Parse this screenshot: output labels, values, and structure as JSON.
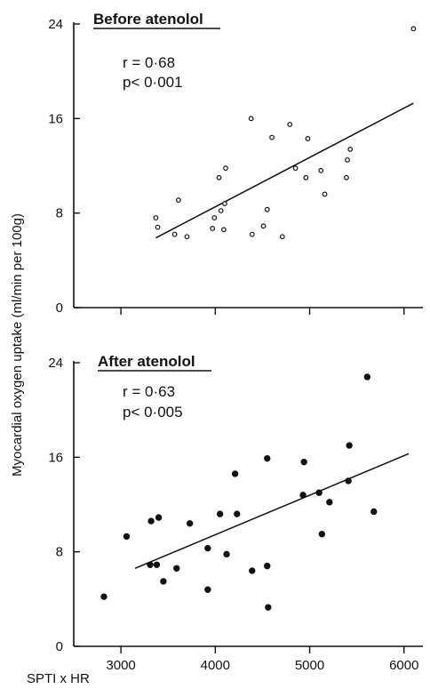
{
  "chart_data": [
    {
      "type": "scatter",
      "title": "Before atenolol",
      "annotations": [
        "r = 0·68",
        "p< 0·001"
      ],
      "ylabel": "Myocardial oxygen uptake  (ml/min per 100g)",
      "xlabel": "",
      "ylim": [
        0,
        24
      ],
      "xlim": [
        2500,
        6200
      ],
      "y_ticks": [
        "0",
        "8",
        "16",
        "24"
      ],
      "y_tick_values": [
        0,
        8,
        16,
        24
      ],
      "marker": "open",
      "points": [
        [
          3370,
          7.6
        ],
        [
          3390,
          6.8
        ],
        [
          3570,
          6.2
        ],
        [
          3610,
          9.1
        ],
        [
          3700,
          6.0
        ],
        [
          3970,
          6.7
        ],
        [
          3990,
          7.6
        ],
        [
          4040,
          11.0
        ],
        [
          4060,
          8.2
        ],
        [
          4090,
          6.6
        ],
        [
          4100,
          8.8
        ],
        [
          4110,
          11.8
        ],
        [
          4380,
          16.0
        ],
        [
          4390,
          6.2
        ],
        [
          4510,
          6.9
        ],
        [
          4550,
          8.3
        ],
        [
          4600,
          14.4
        ],
        [
          4710,
          6.0
        ],
        [
          4790,
          15.5
        ],
        [
          4850,
          11.8
        ],
        [
          4960,
          11.0
        ],
        [
          4980,
          14.3
        ],
        [
          5120,
          11.6
        ],
        [
          5160,
          9.6
        ],
        [
          5390,
          11.0
        ],
        [
          5400,
          12.5
        ],
        [
          5430,
          13.4
        ],
        [
          6100,
          23.6
        ]
      ],
      "regression": {
        "x": [
          3370,
          6100
        ],
        "y": [
          5.9,
          17.3
        ]
      }
    },
    {
      "type": "scatter",
      "title": "After atenolol",
      "annotations": [
        "r = 0·63",
        "p< 0·005"
      ],
      "ylabel": "Myocardial oxygen uptake  (ml/min per 100g)",
      "xlabel": "SPTI x HR",
      "ylim": [
        0,
        24
      ],
      "xlim": [
        2500,
        6200
      ],
      "x_ticks": [
        "3000",
        "4000",
        "5000",
        "6000"
      ],
      "x_tick_values": [
        3000,
        4000,
        5000,
        6000
      ],
      "y_ticks": [
        "0",
        "8",
        "16",
        "24"
      ],
      "y_tick_values": [
        0,
        8,
        16,
        24
      ],
      "marker": "filled",
      "points": [
        [
          2820,
          4.2
        ],
        [
          3060,
          9.3
        ],
        [
          3310,
          6.9
        ],
        [
          3320,
          10.6
        ],
        [
          3380,
          6.9
        ],
        [
          3400,
          10.9
        ],
        [
          3450,
          5.5
        ],
        [
          3590,
          6.6
        ],
        [
          3730,
          10.4
        ],
        [
          3920,
          8.3
        ],
        [
          3920,
          4.8
        ],
        [
          4050,
          11.2
        ],
        [
          4120,
          7.8
        ],
        [
          4210,
          14.6
        ],
        [
          4230,
          11.2
        ],
        [
          4390,
          6.4
        ],
        [
          4550,
          15.9
        ],
        [
          4550,
          6.8
        ],
        [
          4560,
          3.3
        ],
        [
          4930,
          12.8
        ],
        [
          4940,
          15.6
        ],
        [
          5100,
          13.0
        ],
        [
          5130,
          9.5
        ],
        [
          5210,
          12.2
        ],
        [
          5410,
          14.0
        ],
        [
          5420,
          17.0
        ],
        [
          5610,
          22.8
        ],
        [
          5680,
          11.4
        ]
      ],
      "regression": {
        "x": [
          3150,
          6050
        ],
        "y": [
          6.6,
          16.3
        ]
      }
    }
  ]
}
